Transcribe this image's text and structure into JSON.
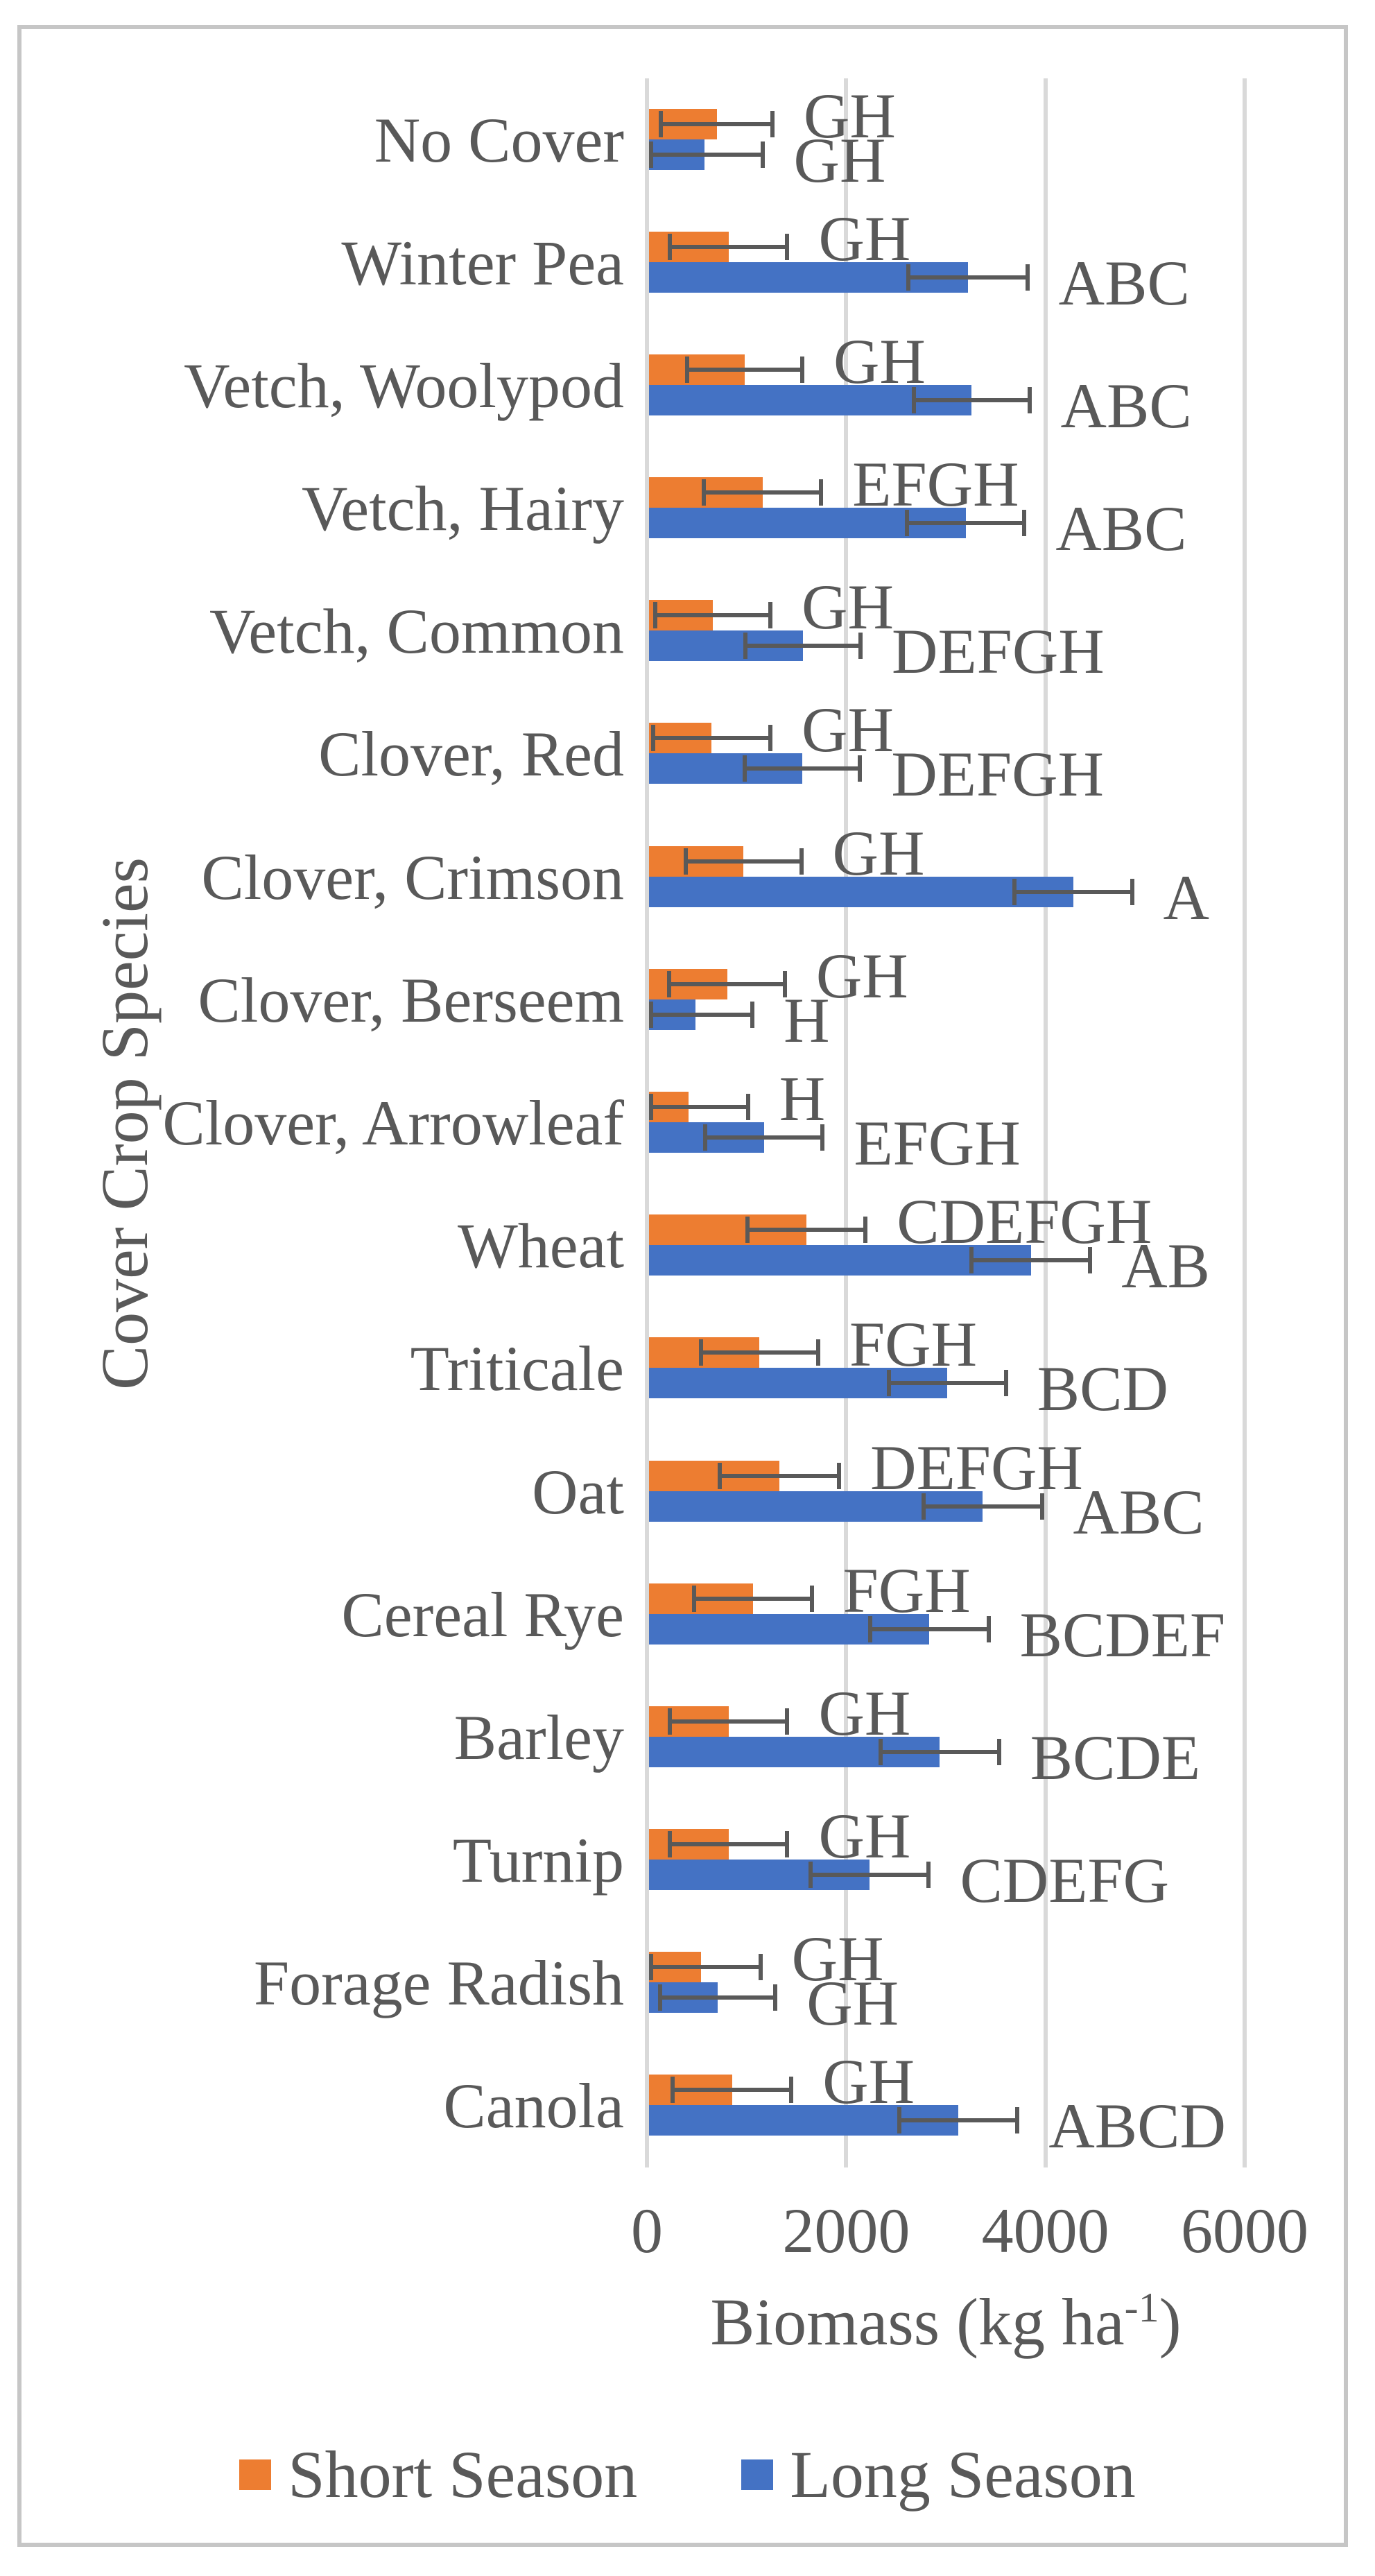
{
  "chart_data": {
    "type": "bar",
    "orientation": "horizontal",
    "title": "",
    "xlabel_parts": {
      "main": "Biomass (kg ha",
      "sup": "-1",
      "end": ")"
    },
    "ylabel": "Cover Crop Species",
    "x_ticks": [
      0,
      2000,
      4000,
      6000
    ],
    "xlim": [
      0,
      6000
    ],
    "grid": "vertical-major",
    "legend_position": "bottom",
    "colors": {
      "short_season": "#ED7D31",
      "long_season": "#4472C4",
      "error_bar": "#595959",
      "gridline": "#D9D9D9",
      "text": "#595959",
      "frame_border": "#C6C6C6"
    },
    "categories": [
      "No Cover",
      "Winter Pea",
      "Vetch, Woolypod",
      "Vetch, Hairy",
      "Vetch, Common",
      "Clover, Red",
      "Clover, Crimson",
      "Clover, Berseem",
      "Clover, Arrowleaf",
      "Wheat",
      "Triticale",
      "Oat",
      "Cereal Rye",
      "Barley",
      "Turnip",
      "Forage Radish",
      "Canola"
    ],
    "series": [
      {
        "name": "Short Season",
        "color": "#ED7D31",
        "values": [
          700,
          820,
          980,
          1160,
          660,
          650,
          970,
          805,
          420,
          1600,
          1130,
          1330,
          1065,
          820,
          820,
          540,
          855
        ],
        "errors": [
          580,
          610,
          600,
          610,
          600,
          610,
          600,
          600,
          615,
          615,
          610,
          620,
          610,
          610,
          610,
          620,
          615
        ],
        "labels": [
          "GH",
          "GH",
          "GH",
          "EFGH",
          "GH",
          "GH",
          "GH",
          "GH",
          "H",
          "CDEFGH",
          "FGH",
          "DEFGH",
          "FGH",
          "GH",
          "GH",
          "GH",
          "GH"
        ]
      },
      {
        "name": "Long Season",
        "color": "#4472C4",
        "values": [
          580,
          3220,
          3260,
          3200,
          1565,
          1560,
          4280,
          490,
          1175,
          3855,
          3015,
          3370,
          2835,
          2940,
          2235,
          710,
          3125
        ],
        "errors": [
          600,
          620,
          600,
          610,
          600,
          600,
          610,
          590,
          610,
          615,
          610,
          615,
          615,
          615,
          615,
          600,
          615
        ],
        "labels": [
          "GH",
          "ABC",
          "ABC",
          "ABC",
          "DEFGH",
          "DEFGH",
          "A",
          "H",
          "EFGH",
          "AB",
          "BCD",
          "ABC",
          "BCDEF",
          "BCDE",
          "CDEFG",
          "GH",
          "ABCD"
        ]
      }
    ],
    "legend": [
      {
        "name": "Short Season",
        "color": "#ED7D31"
      },
      {
        "name": "Long Season",
        "color": "#4472C4"
      }
    ]
  }
}
